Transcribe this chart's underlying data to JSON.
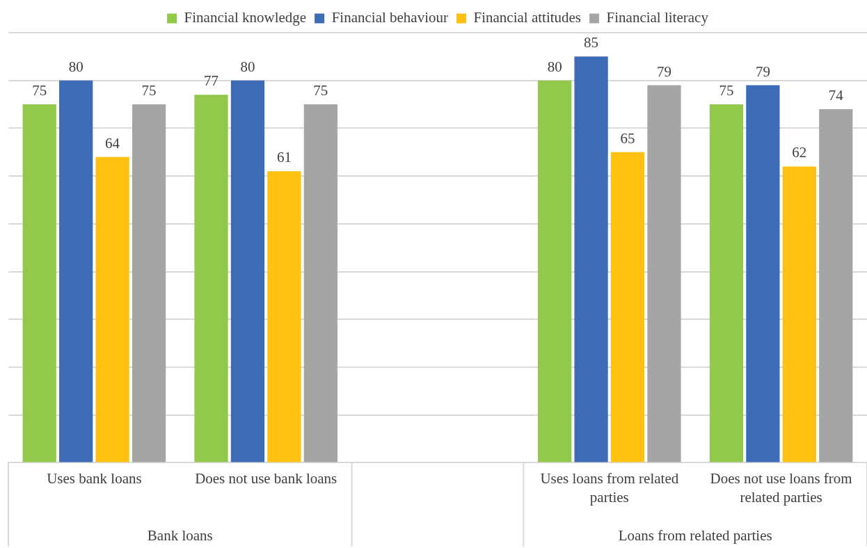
{
  "chart_data": {
    "type": "bar",
    "categories": [
      "Uses bank loans",
      "Does not use bank loans",
      null,
      "Uses loans from related parties",
      "Does not use loans from related parties"
    ],
    "series": [
      {
        "name": "Financial knowledge",
        "color": "#92c84c",
        "values": [
          75,
          77,
          null,
          80,
          75
        ]
      },
      {
        "name": "Financial behaviour",
        "color": "#3d6bb5",
        "values": [
          80,
          80,
          null,
          85,
          79
        ]
      },
      {
        "name": "Financial attitudes",
        "color": "#ffc012",
        "values": [
          64,
          61,
          null,
          65,
          62
        ]
      },
      {
        "name": "Financial literacy",
        "color": "#a5a5a5",
        "values": [
          75,
          75,
          null,
          79,
          74
        ]
      }
    ],
    "ylim": [
      0,
      90
    ],
    "yticks": [
      {
        "value": 0,
        "label": null
      },
      {
        "value": 10,
        "label": null
      },
      {
        "value": 20,
        "label": null
      },
      {
        "value": 30,
        "label": null
      },
      {
        "value": 40,
        "label": null
      },
      {
        "value": 50,
        "label": null
      },
      {
        "value": 60,
        "label": null
      },
      {
        "value": 70,
        "label": null
      },
      {
        "value": 80,
        "label": null
      },
      {
        "value": 90,
        "label": null
      }
    ],
    "grid": "y",
    "legend": "top",
    "tick_labels": "x",
    "data_labels": true,
    "annotations": [
      "Bank loans",
      "Loans from related parties"
    ]
  }
}
